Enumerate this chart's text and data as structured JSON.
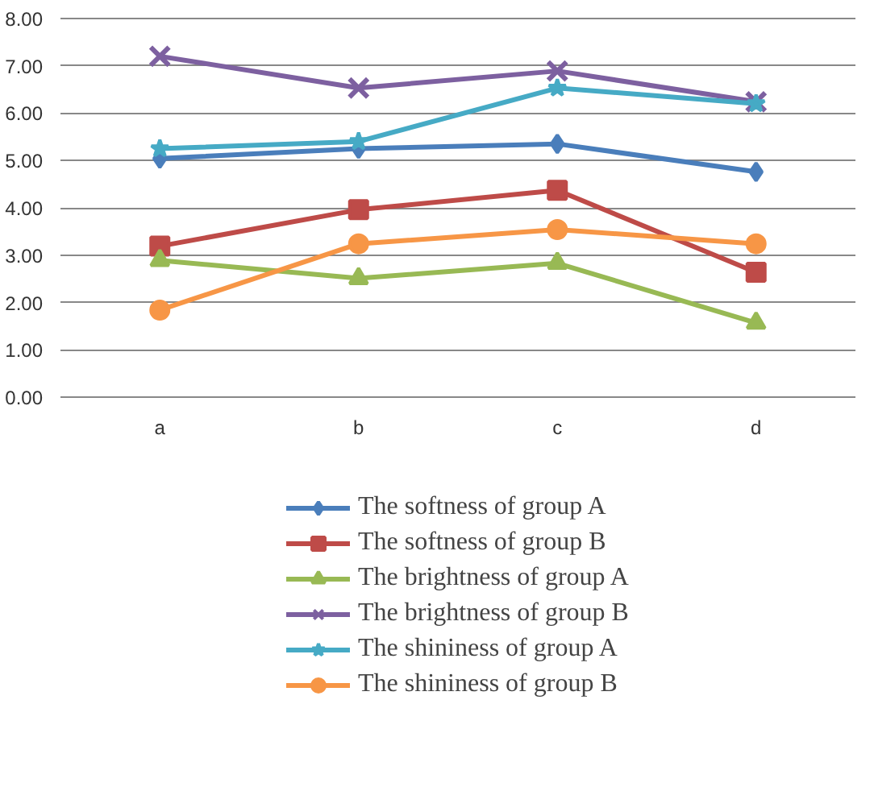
{
  "chart_data": {
    "type": "line",
    "categories": [
      "a",
      "b",
      "c",
      "d"
    ],
    "ylim": [
      0,
      8
    ],
    "yticks": [
      {
        "value": 0,
        "label": "0.00"
      },
      {
        "value": 1,
        "label": "1.00"
      },
      {
        "value": 2,
        "label": "2.00"
      },
      {
        "value": 3,
        "label": "3.00"
      },
      {
        "value": 4,
        "label": "4.00"
      },
      {
        "value": 5,
        "label": "5.00"
      },
      {
        "value": 6,
        "label": "6.00"
      },
      {
        "value": 7,
        "label": "7.00"
      },
      {
        "value": 8,
        "label": "8.00"
      }
    ],
    "grid": "y",
    "legend": "bottom",
    "line_style": "solid",
    "series": [
      {
        "name": "The softness of group A",
        "color": "#4a7ebb",
        "marker": "diamond",
        "values": [
          5.04,
          5.25,
          5.35,
          4.76
        ]
      },
      {
        "name": "The softness of group B",
        "color": "#be4b48",
        "marker": "square",
        "values": [
          3.19,
          3.96,
          4.37,
          2.64
        ]
      },
      {
        "name": "The brightness of group A",
        "color": "#98b954",
        "marker": "triangle",
        "values": [
          2.89,
          2.51,
          2.83,
          1.57
        ]
      },
      {
        "name": "The brightness of group B",
        "color": "#7d60a0",
        "marker": "cross",
        "values": [
          7.2,
          6.53,
          6.89,
          6.24
        ]
      },
      {
        "name": "The shininess of group A",
        "color": "#46aac5",
        "marker": "star",
        "values": [
          5.25,
          5.4,
          6.53,
          6.2
        ]
      },
      {
        "name": "The shininess of group B",
        "color": "#f79646",
        "marker": "circle",
        "values": [
          1.84,
          3.24,
          3.54,
          3.24
        ]
      }
    ]
  }
}
